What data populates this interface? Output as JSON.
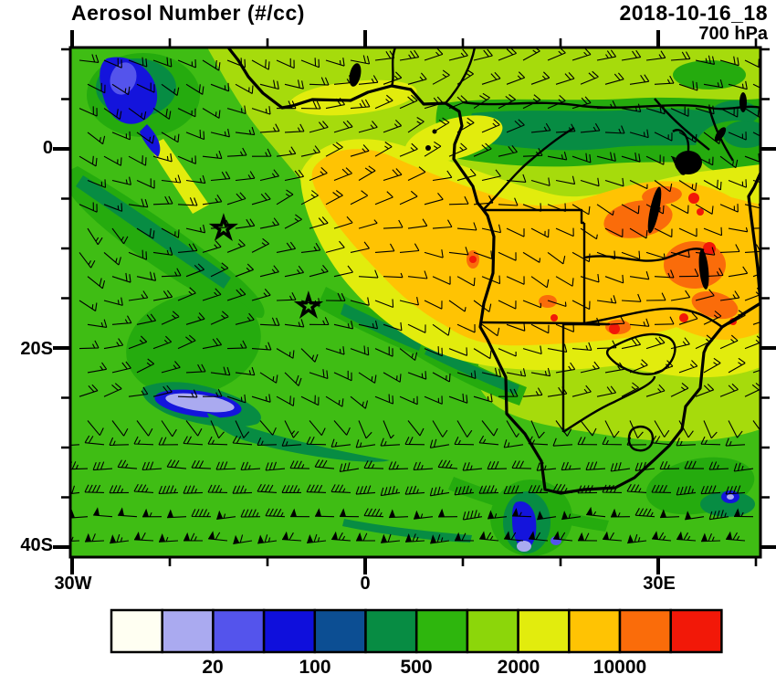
{
  "header": {
    "title": "Aerosol Number (#/cc)",
    "datetime": "2018-10-16_18",
    "level": "700 hPa"
  },
  "axes": {
    "y_tick_labels": [
      "0",
      "20S",
      "40S"
    ],
    "x_tick_labels": [
      "30W",
      "0",
      "30E"
    ]
  },
  "colorbar_labels": [
    "20",
    "100",
    "500",
    "2000",
    "10000"
  ],
  "chart_data": {
    "type": "heatmap",
    "title": "Aerosol Number (#/cc)",
    "time": "2018-10-16_18",
    "level": "700 hPa",
    "projection": "cylindrical lat-lon",
    "lon_range": [
      -30.5,
      40.5
    ],
    "lat_range": [
      -41.5,
      10.5
    ],
    "x_ticks": [
      {
        "label": "30W",
        "lon": -30
      },
      {
        "label": "0",
        "lon": 0
      },
      {
        "label": "30E",
        "lon": 30
      }
    ],
    "y_ticks": [
      {
        "label": "0",
        "lat": 0
      },
      {
        "label": "20S",
        "lat": -20
      },
      {
        "label": "40S",
        "lat": -40
      }
    ],
    "minor_tick_deg_lon": 10,
    "minor_tick_deg_lat": 5,
    "colorbar": {
      "units": "#/cc",
      "levels": [
        10,
        20,
        50,
        100,
        200,
        500,
        1000,
        2000,
        5000,
        10000,
        20000
      ],
      "labeled_levels": [
        "20",
        "100",
        "500",
        "2000",
        "10000"
      ],
      "colors": [
        "#FFFFF2",
        "#AAAAF0",
        "#5454EC",
        "#0F0FDC",
        "#0C4E93",
        "#078C43",
        "#2EB60D",
        "#8CD60A",
        "#E2EC0D",
        "#FFC303",
        "#FA6C0A",
        "#F21808"
      ]
    },
    "map_colors": {
      "green": "#3FBD14",
      "midgreen": "#25AB0E",
      "seagreen": "#078C43",
      "ygreen": "#A6DB0C",
      "yellow": "#E2EC0D",
      "amber": "#FFC303",
      "orange": "#FA6C0A",
      "red": "#F21808",
      "blue": "#1414DC",
      "violet": "#5454EC",
      "lavender": "#AAAAF0"
    },
    "field_highlights": [
      {
        "feature": "high aerosol plume ~5000-10000 #/cc",
        "area": "central Africa and Gulf of Guinea outflow (5E-30E, 2S-20S)",
        "color": "#FFC303"
      },
      {
        "feature": "hotspots >10000 #/cc",
        "area": "Angola / Zambia / DRC burning regions",
        "color": "#F21808"
      },
      {
        "feature": "clean air 20-100 #/cc",
        "area": "NW corner patch and SW mid-latitude streak",
        "color": "#AAAAF0"
      },
      {
        "feature": "background 500-2000 #/cc",
        "area": "South Atlantic and southern Africa",
        "color": "#2EB60D"
      }
    ],
    "markers": [
      {
        "symbol": "star",
        "lon": -14.5,
        "lat": -8.0
      },
      {
        "symbol": "star",
        "lon": -5.8,
        "lat": -15.8
      }
    ],
    "overlays": [
      "wind barbs (700 hPa)",
      "coastlines",
      "country borders",
      "lakes filled black"
    ]
  }
}
